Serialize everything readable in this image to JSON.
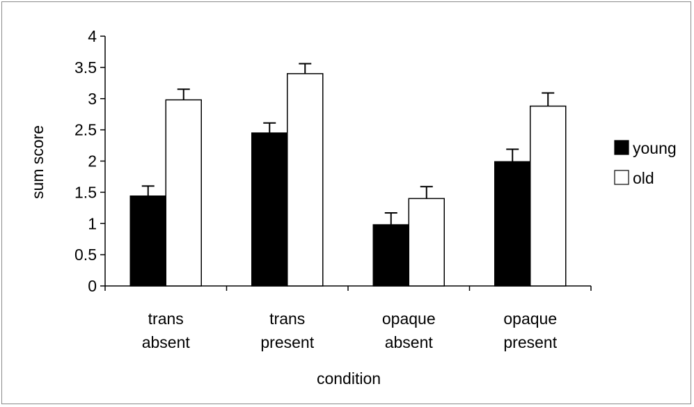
{
  "chart_data": {
    "type": "bar",
    "title": "",
    "xlabel": "condition",
    "ylabel": "sum score",
    "ylim": [
      0,
      4
    ],
    "yticks": [
      "0",
      "0.5",
      "1",
      "1.5",
      "2",
      "2.5",
      "3",
      "3.5",
      "4"
    ],
    "categories": [
      [
        "trans",
        "absent"
      ],
      [
        "trans",
        "present"
      ],
      [
        "opaque",
        "absent"
      ],
      [
        "opaque",
        "present"
      ]
    ],
    "series": [
      {
        "name": "young",
        "values": [
          1.44,
          2.45,
          0.98,
          1.99
        ],
        "errors": [
          0.16,
          0.16,
          0.19,
          0.2
        ],
        "color": "#000000"
      },
      {
        "name": "old",
        "values": [
          2.98,
          3.4,
          1.4,
          2.88
        ],
        "errors": [
          0.17,
          0.16,
          0.19,
          0.21
        ],
        "color": "#ffffff"
      }
    ],
    "grid": false,
    "legend_position": "right"
  }
}
